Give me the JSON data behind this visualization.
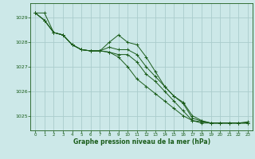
{
  "background_color": "#cce8e8",
  "grid_color": "#aacccc",
  "line_color": "#1a5c1a",
  "marker_color": "#1a5c1a",
  "xlabel": "Graphe pression niveau de la mer (hPa)",
  "xlabel_color": "#1a5c1a",
  "ylabel_color": "#1a5c1a",
  "tick_color": "#1a5c1a",
  "yticks": [
    1025,
    1026,
    1027,
    1028,
    1029
  ],
  "xticks": [
    0,
    1,
    2,
    3,
    4,
    5,
    6,
    7,
    8,
    9,
    10,
    11,
    12,
    13,
    14,
    15,
    16,
    17,
    18,
    19,
    20,
    21,
    22,
    23
  ],
  "ylim": [
    1024.4,
    1029.6
  ],
  "xlim": [
    -0.5,
    23.5
  ],
  "lines": [
    [
      1029.2,
      1029.2,
      1028.4,
      1028.3,
      1027.9,
      1027.7,
      1027.65,
      1027.65,
      1028.0,
      1028.3,
      1028.0,
      1027.9,
      1027.4,
      1026.8,
      1026.2,
      1025.8,
      1025.55,
      1025.0,
      1024.8,
      1024.7,
      1024.7,
      1024.7,
      1024.7,
      1024.75
    ],
    [
      1029.2,
      1028.9,
      1028.4,
      1028.3,
      1027.9,
      1027.7,
      1027.65,
      1027.65,
      1027.6,
      1027.4,
      1027.0,
      1026.5,
      1026.2,
      1025.9,
      1025.6,
      1025.3,
      1025.0,
      1024.8,
      1024.75,
      1024.7,
      1024.7,
      1024.7,
      1024.7,
      1024.7
    ],
    [
      1029.2,
      1028.9,
      1028.4,
      1028.3,
      1027.9,
      1027.7,
      1027.65,
      1027.65,
      1027.8,
      1027.7,
      1027.7,
      1027.5,
      1027.0,
      1026.6,
      1026.2,
      1025.8,
      1025.5,
      1024.9,
      1024.78,
      1024.7,
      1024.7,
      1024.7,
      1024.7,
      1024.7
    ],
    [
      1029.2,
      1028.9,
      1028.4,
      1028.3,
      1027.9,
      1027.7,
      1027.65,
      1027.65,
      1027.6,
      1027.5,
      1027.5,
      1027.2,
      1026.7,
      1026.4,
      1026.0,
      1025.6,
      1025.2,
      1024.8,
      1024.7,
      1024.7,
      1024.7,
      1024.7,
      1024.7,
      1024.7
    ]
  ]
}
